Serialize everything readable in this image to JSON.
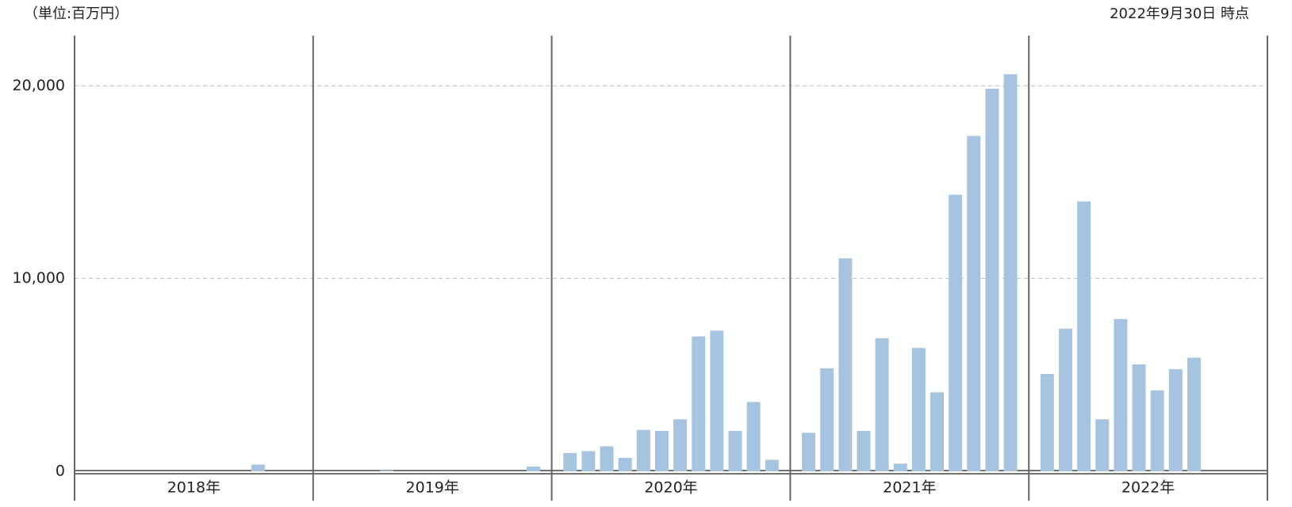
{
  "chart_data": {
    "type": "bar",
    "unit_label": "（単位:百万円）",
    "as_of": "2022年9月30日 時点",
    "color": "#a6c4e0",
    "grid": true,
    "ylim": [
      0,
      22600
    ],
    "yticks": [
      0,
      {
        "value": 10000,
        "label": "10,000"
      },
      {
        "value": 20000,
        "label": "20,000"
      }
    ],
    "groups": [
      {
        "name": "2018年",
        "categories": [
          null,
          null,
          null,
          null,
          null,
          null,
          null,
          null,
          null,
          null,
          null,
          null
        ],
        "values": [
          0,
          0,
          0,
          0,
          0,
          0,
          0,
          0,
          0,
          350,
          0,
          0
        ]
      },
      {
        "name": "2019年",
        "categories": [
          null,
          null,
          null,
          null,
          null,
          null,
          null,
          null,
          null,
          null,
          null,
          null
        ],
        "values": [
          0,
          0,
          0,
          50,
          0,
          0,
          0,
          0,
          0,
          0,
          0,
          250
        ]
      },
      {
        "name": "2020年",
        "categories": [
          null,
          null,
          null,
          null,
          null,
          null,
          null,
          null,
          null,
          null,
          null,
          null
        ],
        "values": [
          950,
          1050,
          1300,
          700,
          2150,
          2100,
          2700,
          7000,
          7300,
          2100,
          3600,
          600
        ]
      },
      {
        "name": "2021年",
        "categories": [
          null,
          null,
          null,
          null,
          null,
          null,
          null,
          null,
          null,
          null,
          null,
          null
        ],
        "values": [
          2000,
          5350,
          11050,
          2100,
          6900,
          400,
          6400,
          4100,
          14350,
          17400,
          19850,
          20600
        ]
      },
      {
        "name": "2022年",
        "categories": [
          null,
          null,
          null,
          null,
          null,
          null,
          null,
          null,
          null
        ],
        "values": [
          5050,
          7400,
          14000,
          2700,
          7900,
          5550,
          4200,
          5300,
          5900
        ]
      }
    ]
  }
}
